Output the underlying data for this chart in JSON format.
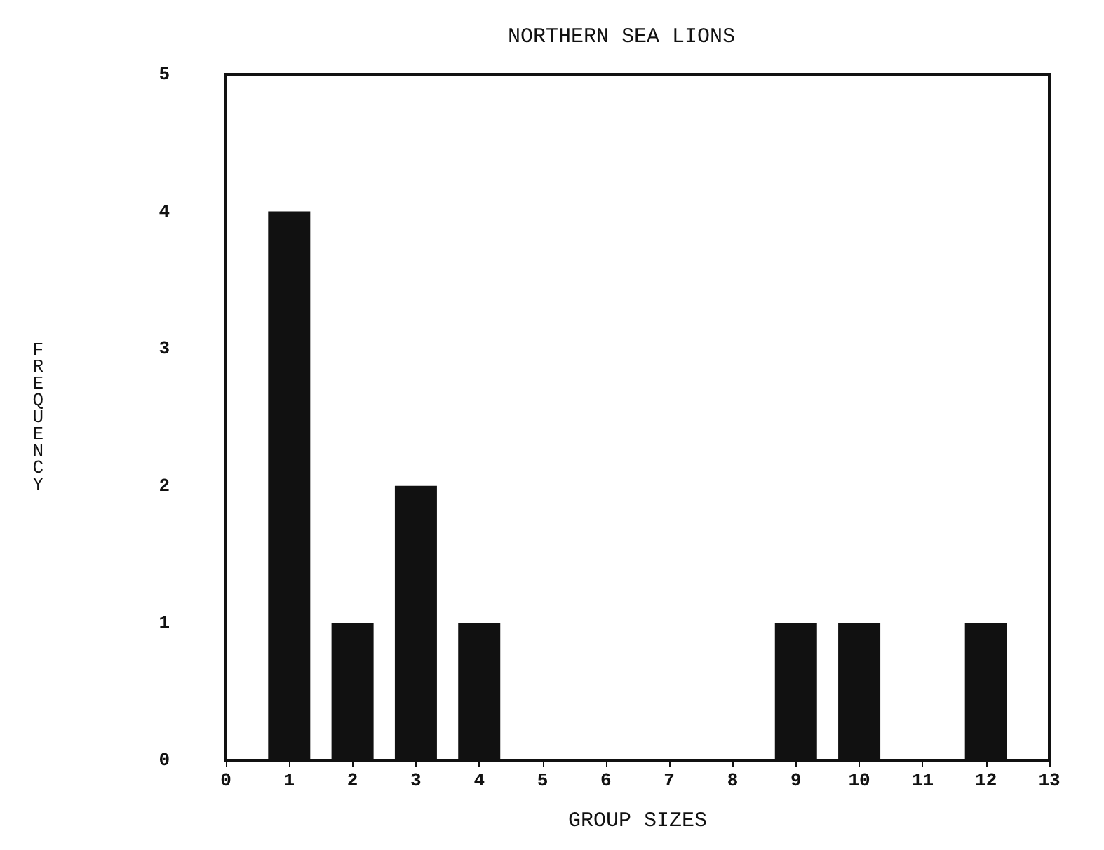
{
  "chart_data": {
    "type": "bar",
    "title": "NORTHERN SEA LIONS",
    "xlabel": "GROUP SIZES",
    "ylabel": "FREQUENCY",
    "x": [
      1,
      2,
      3,
      4,
      9,
      10,
      12
    ],
    "values": [
      4,
      1,
      2,
      1,
      1,
      1,
      1
    ],
    "color": "#111111",
    "xlim": [
      0,
      13
    ],
    "xticks": [
      0,
      1,
      2,
      3,
      4,
      5,
      6,
      7,
      8,
      9,
      10,
      11,
      12,
      13
    ],
    "ylim": [
      0,
      5
    ],
    "yticks": [
      0,
      1,
      2,
      3,
      4,
      5
    ]
  }
}
